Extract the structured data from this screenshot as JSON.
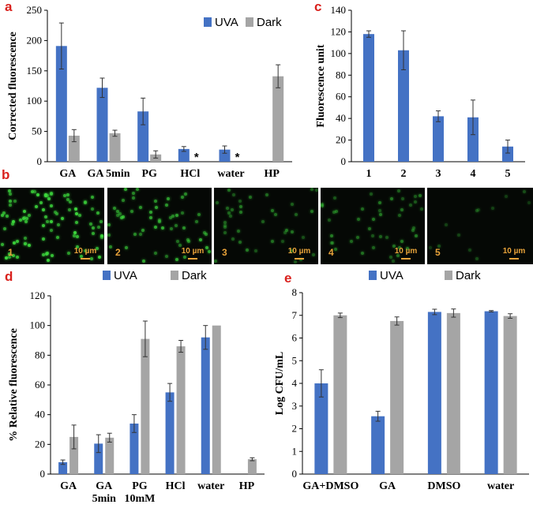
{
  "colors": {
    "uva": "#4472c4",
    "dark": "#a5a5a5",
    "panel_label": "#d9201c",
    "micro_text": "#e8a33a",
    "cells": "#3dd93d"
  },
  "panel_b": {
    "label": "b",
    "images": [
      {
        "number": "1",
        "scale": "10 µm",
        "density": 90,
        "brightness": 1.0
      },
      {
        "number": "2",
        "scale": "10 µm",
        "density": 55,
        "brightness": 0.8
      },
      {
        "number": "3",
        "scale": "10 µm",
        "density": 40,
        "brightness": 0.55
      },
      {
        "number": "4",
        "scale": "10 µm",
        "density": 45,
        "brightness": 0.55
      },
      {
        "number": "5",
        "scale": "10 µm",
        "density": 12,
        "brightness": 0.35
      }
    ]
  },
  "chart_data": [
    {
      "id": "a",
      "panel_label": "a",
      "type": "bar",
      "title": "",
      "ylabel": "Corrected fluorescence",
      "xlabel": "",
      "ylim": [
        0,
        250
      ],
      "yticks": [
        0,
        50,
        100,
        150,
        200,
        250
      ],
      "categories": [
        "GA",
        "GA 5min",
        "PG",
        "HCl",
        "water",
        "HP"
      ],
      "legend": [
        "UVA",
        "Dark"
      ],
      "legend_position": "top-right",
      "series": [
        {
          "name": "UVA",
          "values": [
            191,
            122,
            83,
            21,
            20,
            null
          ],
          "errors": [
            38,
            16,
            22,
            4,
            6,
            null
          ]
        },
        {
          "name": "Dark",
          "values": [
            43,
            47,
            12,
            null,
            null,
            141
          ],
          "errors": [
            10,
            5,
            6,
            null,
            null,
            19
          ]
        }
      ],
      "annotations": [
        {
          "category": "HCl",
          "series": "Dark",
          "text": "*"
        },
        {
          "category": "water",
          "series": "Dark",
          "text": "*"
        }
      ]
    },
    {
      "id": "c",
      "panel_label": "c",
      "type": "bar",
      "title": "",
      "ylabel": "Fluorescence unit",
      "xlabel": "",
      "ylim": [
        0,
        140
      ],
      "yticks": [
        0,
        20,
        40,
        60,
        80,
        100,
        120,
        140
      ],
      "categories": [
        "1",
        "2",
        "3",
        "4",
        "5"
      ],
      "legend": [],
      "series": [
        {
          "name": "",
          "values": [
            118,
            103,
            42,
            41,
            14
          ],
          "errors": [
            3,
            18,
            5,
            16,
            6
          ]
        }
      ]
    },
    {
      "id": "d",
      "panel_label": "d",
      "type": "bar",
      "title": "",
      "ylabel": "% Relative fluorescence",
      "xlabel": "",
      "ylim": [
        0,
        120
      ],
      "yticks": [
        0,
        20,
        40,
        60,
        80,
        100,
        120
      ],
      "categories": [
        "GA",
        "GA\n5min",
        "PG\n10mM",
        "HCl",
        "water",
        "HP"
      ],
      "legend": [
        "UVA",
        "Dark"
      ],
      "legend_position": "top-center",
      "series": [
        {
          "name": "UVA",
          "values": [
            8,
            20.5,
            34,
            55,
            92,
            null
          ],
          "errors": [
            1.5,
            6,
            6,
            6,
            8,
            null
          ]
        },
        {
          "name": "Dark",
          "values": [
            25,
            24.5,
            91,
            86,
            100,
            10
          ],
          "errors": [
            8,
            3,
            12,
            4,
            0,
            1
          ]
        }
      ]
    },
    {
      "id": "e",
      "panel_label": "e",
      "type": "bar",
      "title": "",
      "ylabel": "Log CFU/mL",
      "xlabel": "",
      "ylim": [
        0,
        8
      ],
      "yticks": [
        0,
        1,
        2,
        3,
        4,
        5,
        6,
        7,
        8
      ],
      "categories": [
        "GA+DMSO",
        "GA",
        "DMSO",
        "water"
      ],
      "legend": [
        "UVA",
        "Dark"
      ],
      "legend_position": "top-center",
      "series": [
        {
          "name": "UVA",
          "values": [
            4.0,
            2.55,
            7.15,
            7.18
          ],
          "errors": [
            0.6,
            0.22,
            0.12,
            0.03
          ]
        },
        {
          "name": "Dark",
          "values": [
            7.0,
            6.75,
            7.1,
            6.97
          ],
          "errors": [
            0.1,
            0.18,
            0.18,
            0.1
          ]
        }
      ]
    }
  ]
}
